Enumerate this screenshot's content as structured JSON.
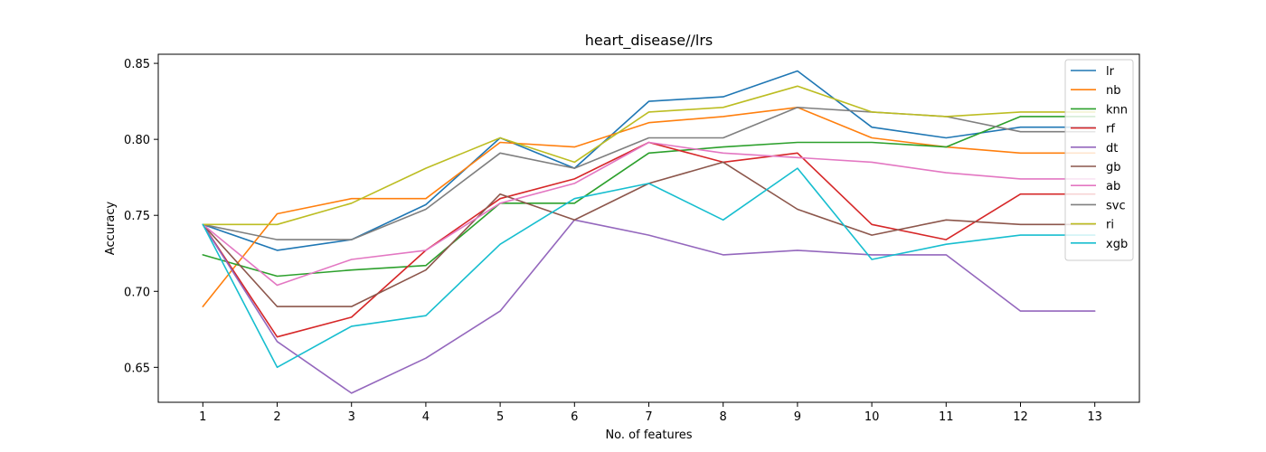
{
  "chart_data": {
    "type": "line",
    "title": "heart_disease//lrs",
    "xlabel": "No. of features",
    "ylabel": "Accuracy",
    "x": [
      1,
      2,
      3,
      4,
      5,
      6,
      7,
      8,
      9,
      10,
      11,
      12,
      13
    ],
    "xlim": [
      0.4,
      13.6
    ],
    "ylim": [
      0.627,
      0.856
    ],
    "yticks": [
      0.65,
      0.7,
      0.75,
      0.8,
      0.85
    ],
    "ytick_labels": [
      "0.65",
      "0.70",
      "0.75",
      "0.80",
      "0.85"
    ],
    "legend_position": "top-right",
    "grid": false,
    "series": [
      {
        "name": "lr",
        "color": "#1f77b4",
        "values": [
          0.744,
          0.727,
          0.734,
          0.757,
          0.801,
          0.781,
          0.825,
          0.828,
          0.845,
          0.808,
          0.801,
          0.808,
          0.808
        ]
      },
      {
        "name": "nb",
        "color": "#ff7f0e",
        "values": [
          0.69,
          0.751,
          0.761,
          0.761,
          0.798,
          0.795,
          0.811,
          0.815,
          0.821,
          0.801,
          0.795,
          0.791,
          0.791
        ]
      },
      {
        "name": "knn",
        "color": "#2ca02c",
        "values": [
          0.724,
          0.71,
          0.714,
          0.717,
          0.758,
          0.758,
          0.791,
          0.795,
          0.798,
          0.798,
          0.795,
          0.815,
          0.815
        ]
      },
      {
        "name": "rf",
        "color": "#d62728",
        "values": [
          0.744,
          0.67,
          0.683,
          0.727,
          0.761,
          0.774,
          0.798,
          0.785,
          0.791,
          0.744,
          0.734,
          0.764,
          0.764
        ]
      },
      {
        "name": "dt",
        "color": "#9467bd",
        "values": [
          0.744,
          0.667,
          0.633,
          0.656,
          0.687,
          0.747,
          0.737,
          0.724,
          0.727,
          0.724,
          0.724,
          0.687,
          0.687
        ]
      },
      {
        "name": "gb",
        "color": "#8c564b",
        "values": [
          0.744,
          0.69,
          0.69,
          0.714,
          0.764,
          0.747,
          0.771,
          0.785,
          0.754,
          0.737,
          0.747,
          0.744,
          0.744
        ]
      },
      {
        "name": "ab",
        "color": "#e377c2",
        "values": [
          0.744,
          0.704,
          0.721,
          0.727,
          0.758,
          0.771,
          0.798,
          0.791,
          0.788,
          0.785,
          0.778,
          0.774,
          0.774
        ]
      },
      {
        "name": "svc",
        "color": "#7f7f7f",
        "values": [
          0.744,
          0.734,
          0.734,
          0.754,
          0.791,
          0.781,
          0.801,
          0.801,
          0.821,
          0.818,
          0.815,
          0.805,
          0.805
        ]
      },
      {
        "name": "ri",
        "color": "#bcbd22",
        "values": [
          0.744,
          0.744,
          0.758,
          0.781,
          0.801,
          0.785,
          0.818,
          0.821,
          0.835,
          0.818,
          0.815,
          0.818,
          0.818
        ]
      },
      {
        "name": "xgb",
        "color": "#17becf",
        "values": [
          0.744,
          0.65,
          0.677,
          0.684,
          0.731,
          0.761,
          0.771,
          0.747,
          0.781,
          0.721,
          0.731,
          0.737,
          0.737
        ]
      }
    ]
  }
}
